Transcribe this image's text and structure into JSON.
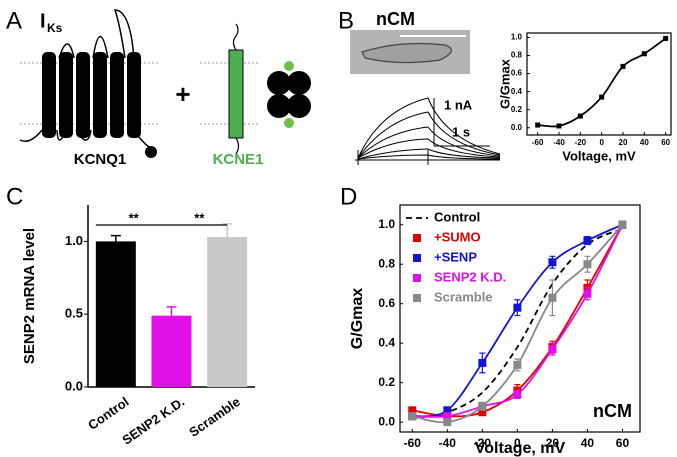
{
  "panel_labels": [
    "A",
    "B",
    "C",
    "D"
  ],
  "panel_a": {
    "current": "I",
    "current_sub": "Ks",
    "plus": "+",
    "protein_1": "KCNQ1",
    "protein_2": "KCNE1"
  },
  "panel_b": {
    "cell_type": "nCM",
    "scale_current": "1 nA",
    "scale_time": "1 s"
  },
  "chart_data": [
    {
      "type": "line",
      "xlabel": "Voltage, mV",
      "ylabel": "G/Gmax",
      "frame": true,
      "x": [
        -60,
        -40,
        -20,
        0,
        20,
        40,
        60
      ],
      "values": [
        0.03,
        0.02,
        0.13,
        0.34,
        0.68,
        0.82,
        0.99
      ],
      "color": "#000000",
      "marker": "square",
      "xlim": [
        -70,
        65
      ],
      "xticks": [
        -60,
        -40,
        -20,
        0,
        20,
        40,
        60
      ],
      "ylim": [
        -0.08,
        1.05
      ],
      "yticks": [
        {
          "value": 0,
          "label": "0.0"
        },
        {
          "value": 0.2,
          "label": "0.2"
        },
        {
          "value": 0.4,
          "label": "0.4"
        },
        {
          "value": 0.6,
          "label": "0.6"
        },
        {
          "value": 0.8,
          "label": "0.8"
        },
        {
          "value": 1,
          "label": "1.0"
        }
      ]
    },
    {
      "type": "bar",
      "ylabel": "SENP2 mRNA level",
      "categories": [
        "Control",
        "SENP2 K.D.",
        "Scramble"
      ],
      "values": [
        1.0,
        0.49,
        1.03
      ],
      "errors": [
        0.04,
        0.06,
        0.09
      ],
      "colors": [
        "#000000",
        "#e010e8",
        "#c8c8c8"
      ],
      "annotations": [
        "**",
        "**"
      ],
      "ylim": [
        0,
        1.25
      ],
      "yticks": [
        {
          "value": 0,
          "label": "0.0"
        },
        {
          "value": 0.5,
          "label": "0.5"
        },
        {
          "value": 1,
          "label": "1.0"
        }
      ]
    },
    {
      "type": "line",
      "xlabel": "Voltage, mV",
      "ylabel": "G/Gmax",
      "frame": true,
      "annotation": "nCM",
      "legend": "upper left",
      "x": [
        -60,
        -40,
        -20,
        0,
        20,
        40,
        60
      ],
      "series": [
        {
          "name": "Control",
          "color": "#000000",
          "dash": true,
          "values": [
            0.02,
            0.05,
            0.15,
            0.38,
            0.7,
            0.9,
            0.98
          ]
        },
        {
          "name": "+SUMO",
          "color": "#e00000",
          "marker": "square",
          "values": [
            0.06,
            0.03,
            0.05,
            0.16,
            0.38,
            0.68,
            1.0
          ],
          "errors": [
            0.01,
            0.01,
            0.01,
            0.03,
            0.03,
            0.04,
            0
          ]
        },
        {
          "name": "+SENP",
          "color": "#1414d2",
          "marker": "square",
          "values": [
            0.03,
            0.06,
            0.3,
            0.58,
            0.81,
            0.92,
            1.0
          ],
          "errors": [
            0.01,
            0.01,
            0.05,
            0.04,
            0.03,
            0.02,
            0
          ]
        },
        {
          "name": "SENP2 K.D.",
          "color": "#e010e8",
          "marker": "square",
          "values": [
            0.03,
            0.03,
            0.08,
            0.14,
            0.37,
            0.65,
            1.0
          ],
          "errors": [
            0.01,
            0.01,
            0.01,
            0.02,
            0.03,
            0.03,
            0
          ]
        },
        {
          "name": "Scramble",
          "color": "#888888",
          "marker": "square",
          "values": [
            0.03,
            0.0,
            0.08,
            0.29,
            0.63,
            0.8,
            1.0
          ],
          "errors": [
            0.01,
            0.01,
            0.02,
            0.03,
            0.09,
            0.04,
            0
          ]
        }
      ],
      "xlim": [
        -67,
        70
      ],
      "xticks": [
        -60,
        -40,
        -20,
        0,
        20,
        40,
        60
      ],
      "ylim": [
        -0.05,
        1.1
      ],
      "yticks": [
        {
          "value": 0,
          "label": "0.0"
        },
        {
          "value": 0.2,
          "label": "0.2"
        },
        {
          "value": 0.4,
          "label": "0.4"
        },
        {
          "value": 0.6,
          "label": "0.6"
        },
        {
          "value": 0.8,
          "label": "0.8"
        },
        {
          "value": 1,
          "label": "1.0"
        }
      ]
    }
  ]
}
